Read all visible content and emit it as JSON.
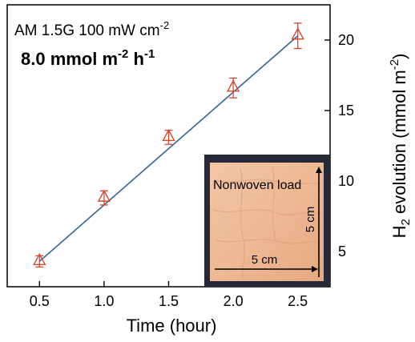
{
  "chart_data": {
    "type": "scatter",
    "x": [
      0.5,
      1.0,
      1.5,
      2.0,
      2.5
    ],
    "series": [
      {
        "values": [
          4.3,
          8.8,
          13.1,
          16.6,
          20.3
        ],
        "errors": [
          0.4,
          0.5,
          0.5,
          0.7,
          0.9
        ],
        "marker": "triangle",
        "color": "#d9472b"
      }
    ],
    "fit": {
      "x": [
        0.5,
        2.5
      ],
      "y": [
        4.3,
        20.3
      ],
      "color": "#2f6696"
    },
    "xlabel": "Time (hour)",
    "ylabel": {
      "base": "H",
      "sub": "2",
      "rest": " evolution (mmol m",
      "sup": "-2",
      "end": ")"
    },
    "xticks": [
      "0.5",
      "1.0",
      "1.5",
      "2.0",
      "2.5"
    ],
    "xtick_values": [
      0.5,
      1.0,
      1.5,
      2.0,
      2.5
    ],
    "yticks": [
      "5",
      "10",
      "15",
      "20"
    ],
    "ytick_values": [
      5,
      10,
      15,
      20
    ],
    "xlim": [
      0.25,
      2.75
    ],
    "ylim": [
      2.5,
      22.5
    ],
    "y_axis_side": "right",
    "annotations": {
      "condition": {
        "text": "AM 1.5G 100 mW cm",
        "sup": "-2"
      },
      "rate": {
        "text": "8.0 mmol m",
        "sup1": "-2",
        "mid": " h",
        "sup2": "-1"
      }
    },
    "inset": {
      "label": "Nonwoven load",
      "width_label": "5 cm",
      "height_label": "5 cm"
    }
  }
}
